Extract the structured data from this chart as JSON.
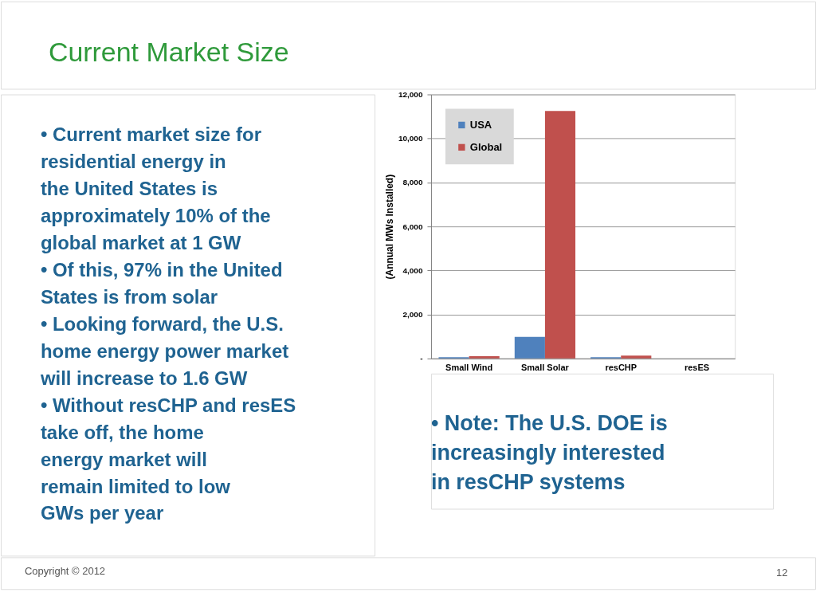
{
  "chart_data": {
    "type": "bar",
    "title": "Current Market Size",
    "ylabel": "(Annual MWs Installed)",
    "categories": [
      "Small Wind",
      "Small Solar",
      "resCHP",
      "resES"
    ],
    "series": [
      {
        "name": "USA",
        "color": "#4f81bd",
        "values": [
          60,
          980,
          60,
          0
        ]
      },
      {
        "name": "Global",
        "color": "#c0504d",
        "values": [
          100,
          11250,
          130,
          0
        ]
      }
    ],
    "ylim": [
      0,
      12000
    ],
    "yticks": [
      {
        "value": 0,
        "label": "-"
      },
      {
        "value": 2000,
        "label": "2,000"
      },
      {
        "value": 4000,
        "label": "4,000"
      },
      {
        "value": 6000,
        "label": "6,000"
      },
      {
        "value": 8000,
        "label": "8,000"
      },
      {
        "value": 10000,
        "label": "10,000"
      },
      {
        "value": 12000,
        "label": "12,000"
      }
    ],
    "grid": "y",
    "legend": "top left",
    "annotations": [
      "• Current market size for residential energy in the United States is approximately 10% of the global market at 1 GW",
      "• Of this, 97% in the United States is from solar",
      "• Looking forward, the U.S. home energy power market will increase to 1.6 GW",
      "• Without resCHP and resES take off, the home energy market will remain limited to low GWs per year",
      "• Note: The U.S. DOE is increasingly interested in resCHP systems",
      "Copyright © 2012",
      "12"
    ]
  }
}
